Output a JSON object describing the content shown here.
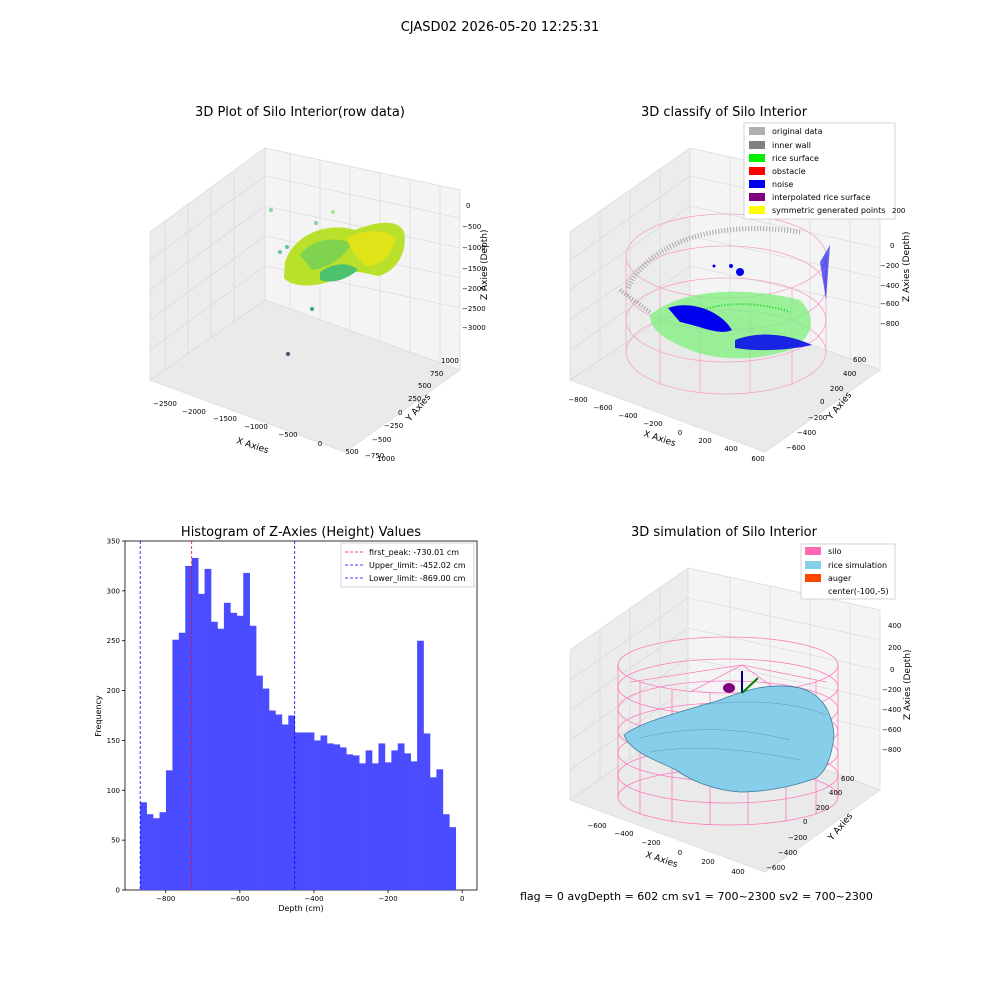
{
  "figure": {
    "suptitle": "CJASD02 2026-05-20 12:25:31",
    "status_line": "flag = 0     avgDepth = 602 cm  sv1 = 700~2300  sv2 = 700~2300"
  },
  "panels": {
    "raw": {
      "title": "3D Plot of Silo Interior(row data)",
      "xlabel": "X Axies",
      "ylabel": "Y Axies",
      "zlabel": "Z Axies (Depth)",
      "xticks": [
        "−2500",
        "−2000",
        "−1500",
        "−1000",
        "−500",
        "0",
        "500",
        "1000"
      ],
      "yticks": [
        "−750",
        "−500",
        "−250",
        "0",
        "250",
        "500",
        "750",
        "1000"
      ],
      "zticks": [
        "0",
        "−500",
        "−1000",
        "−1500",
        "−2000",
        "−2500",
        "−3000"
      ]
    },
    "classify": {
      "title": "3D classify of Silo Interior",
      "xlabel": "X Axies",
      "ylabel": "Y Axies",
      "zlabel": "Z Axies (Depth)",
      "xticks": [
        "−800",
        "−600",
        "−400",
        "−200",
        "0",
        "200",
        "400",
        "600"
      ],
      "yticks": [
        "−600",
        "−400",
        "−200",
        "0",
        "200",
        "400",
        "600"
      ],
      "zticks": [
        "200",
        "0",
        "−200",
        "−400",
        "−600",
        "−800"
      ],
      "legend": [
        {
          "label": "original data",
          "color": "#b0b0b0"
        },
        {
          "label": "inner wall",
          "color": "#808080"
        },
        {
          "label": "rice surface",
          "color": "#00ee00"
        },
        {
          "label": "obstacle",
          "color": "#ff0000"
        },
        {
          "label": "noise",
          "color": "#0000ee"
        },
        {
          "label": "interpolated rice surface",
          "color": "#800080"
        },
        {
          "label": "symmetric generated points",
          "color": "#ffff00"
        }
      ]
    },
    "simulation": {
      "title": "3D simulation of Silo Interior",
      "xlabel": "X Axies",
      "ylabel": "Y Axies",
      "zlabel": "Z Axies (Depth)",
      "xticks": [
        "−600",
        "−400",
        "−200",
        "0",
        "200",
        "400"
      ],
      "yticks": [
        "−600",
        "−400",
        "−200",
        "0",
        "200",
        "400",
        "600"
      ],
      "zticks": [
        "400",
        "200",
        "0",
        "−200",
        "−400",
        "−600",
        "−800"
      ],
      "legend": [
        {
          "label": "silo",
          "color": "#ff69b4"
        },
        {
          "label": "rice simulation",
          "color": "#87ceeb"
        },
        {
          "label": "auger",
          "color": "#ff4500"
        },
        {
          "label": "center(-100,-5)",
          "color": "none"
        }
      ]
    }
  },
  "chart_data": {
    "type": "bar",
    "title": "Histogram of Z-Axies (Height) Values",
    "xlabel": "Depth (cm)",
    "ylabel": "Frequency",
    "xlim": [
      -910,
      40
    ],
    "ylim": [
      0,
      350
    ],
    "xticks": [
      -800,
      -600,
      -400,
      -200,
      0
    ],
    "xtick_labels": [
      "−800",
      "−600",
      "−400",
      "−200",
      "0"
    ],
    "yticks": [
      0,
      50,
      100,
      150,
      200,
      250,
      300,
      350
    ],
    "bin_start": -869,
    "bin_width": 17.38,
    "values": [
      88,
      76,
      72,
      78,
      120,
      251,
      258,
      325,
      333,
      297,
      322,
      269,
      262,
      288,
      278,
      275,
      318,
      265,
      215,
      202,
      180,
      176,
      166,
      175,
      158,
      158,
      158,
      150,
      155,
      147,
      146,
      143,
      136,
      135,
      127,
      140,
      127,
      147,
      128,
      140,
      147,
      137,
      129,
      250,
      157,
      113,
      121,
      76,
      63
    ],
    "bar_color": "#4b4bff",
    "vlines": [
      {
        "label": "first_peak: -730.01 cm",
        "x": -730.01,
        "color": "#ff0000"
      },
      {
        "label": "Upper_limit: -452.02 cm",
        "x": -452.02,
        "color": "#0000ff"
      },
      {
        "label": "Lower_limit: -869.00 cm",
        "x": -869.0,
        "color": "#0000ff"
      }
    ],
    "legend_position": "upper right",
    "grid": false
  }
}
